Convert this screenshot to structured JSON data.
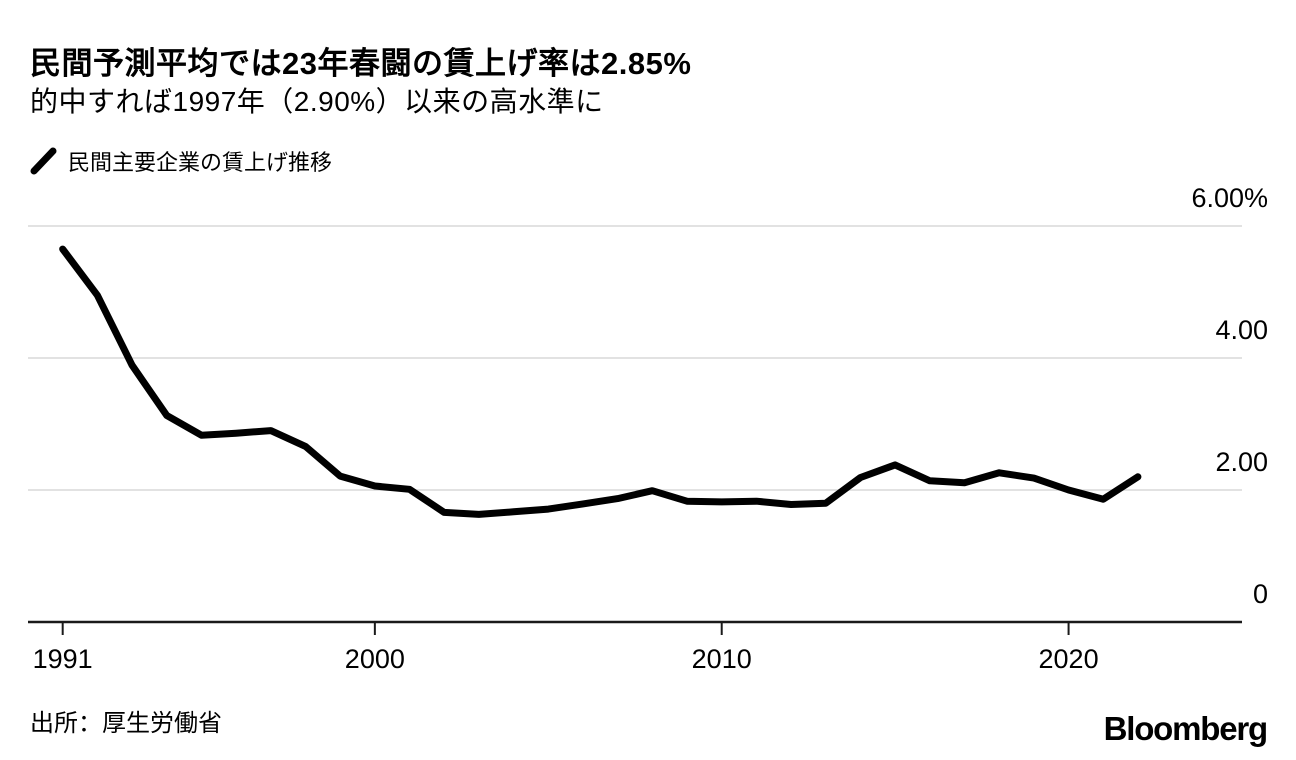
{
  "header": {
    "title": "民間予測平均では23年春闘の賃上げ率は2.85%",
    "subtitle": "的中すれば1997年（2.90%）以来の高水準に"
  },
  "legend": {
    "label": "民間主要企業の賃上げ推移",
    "marker_icon": "line-slash-icon"
  },
  "chart_data": {
    "type": "line",
    "title": "民間予測平均では23年春闘の賃上げ率は2.85%",
    "subtitle": "的中すれば1997年（2.90%）以来の高水準に",
    "series_name": "民間主要企業の賃上げ推移",
    "x": [
      1991,
      1992,
      1993,
      1994,
      1995,
      1996,
      1997,
      1998,
      1999,
      2000,
      2001,
      2002,
      2003,
      2004,
      2005,
      2006,
      2007,
      2008,
      2009,
      2010,
      2011,
      2012,
      2013,
      2014,
      2015,
      2016,
      2017,
      2018,
      2019,
      2020,
      2021,
      2022
    ],
    "values": [
      5.65,
      4.95,
      3.89,
      3.13,
      2.83,
      2.86,
      2.9,
      2.66,
      2.21,
      2.06,
      2.01,
      1.66,
      1.63,
      1.67,
      1.71,
      1.79,
      1.87,
      1.99,
      1.83,
      1.82,
      1.83,
      1.78,
      1.8,
      2.19,
      2.38,
      2.14,
      2.11,
      2.26,
      2.18,
      2.0,
      1.86,
      2.2
    ],
    "unit": "%",
    "xlim": [
      1990,
      2025
    ],
    "ylim": [
      0,
      6
    ],
    "x_ticks": [
      {
        "value": 1991,
        "label": "1991"
      },
      {
        "value": 2000,
        "label": "2000"
      },
      {
        "value": 2010,
        "label": "2010"
      },
      {
        "value": 2020,
        "label": "2020"
      }
    ],
    "y_ticks": [
      {
        "value": 6,
        "label": "6.00%"
      },
      {
        "value": 4,
        "label": "4.00"
      },
      {
        "value": 2,
        "label": "2.00"
      },
      {
        "value": 0,
        "label": "0"
      }
    ],
    "grid": "horizontal",
    "legend_position": "top-left"
  },
  "colors": {
    "line": "#000000",
    "grid": "#d9d9d9",
    "axis": "#1a1a1a",
    "text": "#000000",
    "background": "#ffffff"
  },
  "footer": {
    "source": "出所：厚生労働省",
    "brand": "Bloomberg"
  }
}
